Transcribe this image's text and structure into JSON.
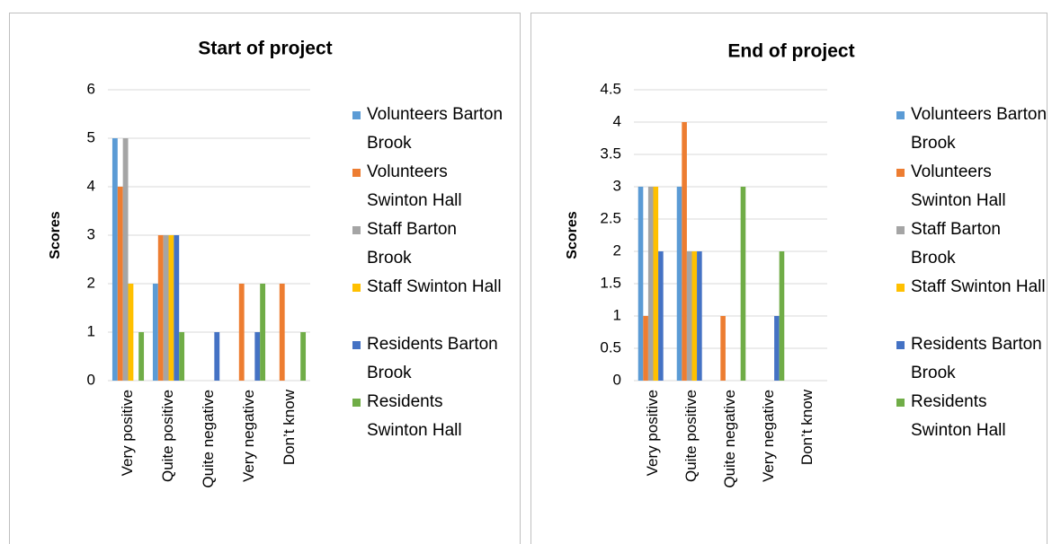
{
  "chart_data": [
    {
      "type": "bar",
      "title": "Start of project",
      "y_label": "Scores",
      "categories": [
        "Very positive",
        "Quite positive",
        "Quite negative",
        "Very negative",
        "Don’t know"
      ],
      "series": [
        {
          "name": "Volunteers Barton Brook",
          "color": "#5b9bd5",
          "values": [
            5,
            2,
            0,
            0,
            0
          ]
        },
        {
          "name": "Volunteers Swinton Hall",
          "color": "#ed7d31",
          "values": [
            4,
            3,
            0,
            2,
            2
          ]
        },
        {
          "name": "Staff Barton Brook",
          "color": "#a5a5a5",
          "values": [
            5,
            3,
            0,
            0,
            0
          ]
        },
        {
          "name": "Staff Swinton Hall",
          "color": "#ffc000",
          "values": [
            2,
            3,
            0,
            0,
            0
          ]
        },
        {
          "name": "Residents Barton Brook",
          "color": "#4472c4",
          "values": [
            0,
            3,
            1,
            1,
            0
          ]
        },
        {
          "name": "Residents Swinton Hall",
          "color": "#70ad47",
          "values": [
            1,
            1,
            0,
            2,
            1
          ]
        }
      ],
      "ylim": [
        0,
        6
      ],
      "yticks": [
        0,
        1,
        2,
        3,
        4,
        5,
        6
      ],
      "grid": true,
      "legend": "right"
    },
    {
      "type": "bar",
      "title": "End of project",
      "y_label": "Scores",
      "categories": [
        "Very positive",
        "Quite positive",
        "Quite negative",
        "Very negative",
        "Don’t know"
      ],
      "series": [
        {
          "name": "Volunteers Barton Brook",
          "color": "#5b9bd5",
          "values": [
            3,
            3,
            0,
            0,
            0
          ]
        },
        {
          "name": "Volunteers Swinton Hall",
          "color": "#ed7d31",
          "values": [
            1,
            4,
            1,
            0,
            0
          ]
        },
        {
          "name": "Staff Barton Brook",
          "color": "#a5a5a5",
          "values": [
            3,
            2,
            0,
            0,
            0
          ]
        },
        {
          "name": "Staff Swinton Hall",
          "color": "#ffc000",
          "values": [
            3,
            2,
            0,
            0,
            0
          ]
        },
        {
          "name": "Residents Barton Brook",
          "color": "#4472c4",
          "values": [
            2,
            2,
            0,
            1,
            0
          ]
        },
        {
          "name": "Residents Swinton Hall",
          "color": "#70ad47",
          "values": [
            0,
            0,
            3,
            2,
            0
          ]
        }
      ],
      "ylim": [
        0,
        4.5
      ],
      "yticks": [
        0,
        0.5,
        1,
        1.5,
        2,
        2.5,
        3,
        3.5,
        4,
        4.5
      ],
      "grid": true,
      "legend": "right"
    }
  ]
}
